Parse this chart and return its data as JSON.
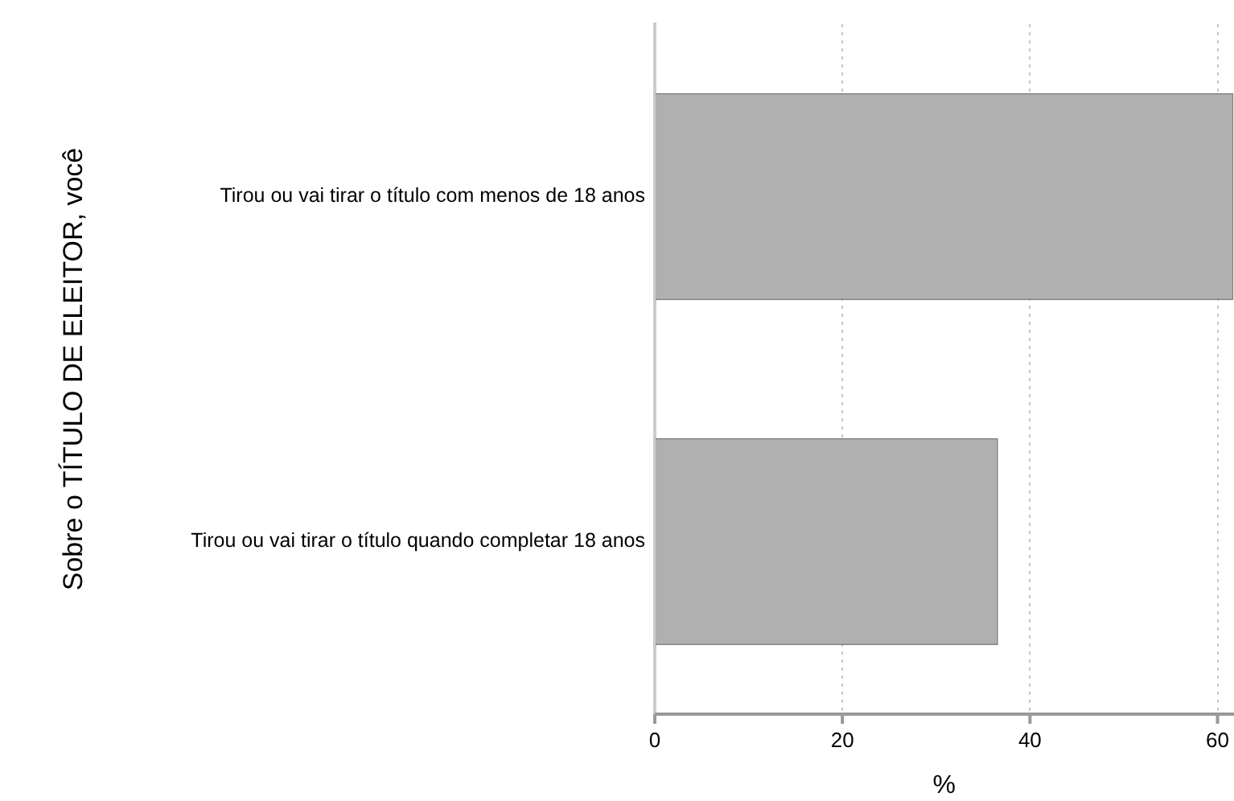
{
  "chart_data": {
    "type": "bar",
    "orientation": "horizontal",
    "xlabel": "%",
    "ylabel": "Sobre o TÍTULO DE ELEITOR, você",
    "categories": [
      "Tirou ou vai tirar o título com menos de 18 anos",
      "Tirou ou vai tirar o título quando completar 18 anos"
    ],
    "values": [
      61.7,
      36.6
    ],
    "color": "#b0b0b0",
    "xlim": [
      0,
      61.7
    ],
    "xticks": [
      0,
      20,
      40,
      60
    ],
    "grid": "x"
  }
}
